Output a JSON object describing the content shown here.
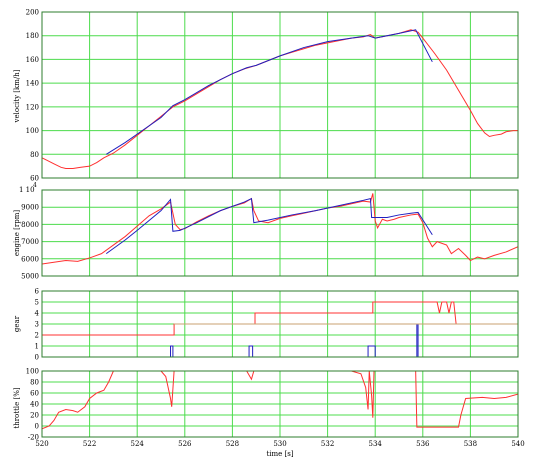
{
  "chart_data": [
    {
      "type": "line",
      "panel": "velocity",
      "ylabel": "velocity [km/h]",
      "xlim": [
        520,
        540
      ],
      "ylim": [
        60,
        200
      ],
      "yticks": [
        60,
        80,
        100,
        120,
        140,
        160,
        180,
        200
      ],
      "grid": true,
      "series": [
        {
          "color": "#ff3030",
          "points": [
            [
              520,
              77
            ],
            [
              520.2,
              75
            ],
            [
              520.5,
              72
            ],
            [
              520.8,
              69
            ],
            [
              521,
              68
            ],
            [
              521.3,
              68
            ],
            [
              521.6,
              69
            ],
            [
              522,
              70
            ],
            [
              522.3,
              73
            ],
            [
              522.6,
              77
            ],
            [
              523,
              81
            ],
            [
              523.5,
              88
            ],
            [
              524,
              96
            ],
            [
              524.5,
              104
            ],
            [
              525,
              112
            ],
            [
              525.5,
              120
            ],
            [
              526,
              125
            ],
            [
              526.5,
              131
            ],
            [
              527,
              137
            ],
            [
              527.5,
              143
            ],
            [
              528,
              148
            ],
            [
              528.5,
              152
            ],
            [
              529,
              155
            ],
            [
              529.5,
              159
            ],
            [
              530,
              163
            ],
            [
              530.5,
              166
            ],
            [
              531,
              169
            ],
            [
              531.5,
              172
            ],
            [
              532,
              174
            ],
            [
              532.5,
              176
            ],
            [
              533,
              178
            ],
            [
              533.5,
              179
            ],
            [
              533.8,
              181
            ],
            [
              534,
              178
            ],
            [
              534.5,
              180
            ],
            [
              535,
              182
            ],
            [
              535.5,
              185
            ],
            [
              535.8,
              183
            ],
            [
              536,
              178
            ],
            [
              536.5,
              165
            ],
            [
              537,
              151
            ],
            [
              537.5,
              134
            ],
            [
              538,
              117
            ],
            [
              538.3,
              106
            ],
            [
              538.6,
              98
            ],
            [
              538.8,
              95
            ],
            [
              539,
              96
            ],
            [
              539.3,
              97
            ],
            [
              539.5,
              99
            ],
            [
              539.8,
              100
            ],
            [
              540,
              100
            ]
          ]
        },
        {
          "color": "#2020c0",
          "points": [
            [
              522.7,
              80
            ],
            [
              523.5,
              90
            ],
            [
              524,
              97
            ],
            [
              525,
              111
            ],
            [
              525.5,
              121
            ],
            [
              526,
              126
            ],
            [
              527,
              138
            ],
            [
              528,
              148
            ],
            [
              528.6,
              153
            ],
            [
              529,
              155
            ],
            [
              530,
              163
            ],
            [
              531,
              170
            ],
            [
              532,
              175
            ],
            [
              533,
              178
            ],
            [
              533.7,
              180
            ],
            [
              534,
              178
            ],
            [
              535,
              182
            ],
            [
              535.7,
              185
            ],
            [
              536.4,
              158
            ]
          ]
        }
      ]
    },
    {
      "type": "line",
      "panel": "engine",
      "ylabel": "engine [rpm]",
      "multiplier": "1 10",
      "exponent": "4",
      "xlim": [
        520,
        540
      ],
      "ylim": [
        5000,
        10000
      ],
      "yticks": [
        5000,
        6000,
        7000,
        8000,
        9000,
        10000
      ],
      "grid": true,
      "series": [
        {
          "color": "#ff3030",
          "points": [
            [
              520,
              5700
            ],
            [
              520.5,
              5800
            ],
            [
              521,
              5900
            ],
            [
              521.5,
              5850
            ],
            [
              522,
              6050
            ],
            [
              522.5,
              6300
            ],
            [
              523,
              6800
            ],
            [
              523.5,
              7300
            ],
            [
              524,
              7900
            ],
            [
              524.5,
              8500
            ],
            [
              525,
              8900
            ],
            [
              525.4,
              9300
            ],
            [
              525.6,
              8000
            ],
            [
              525.8,
              7700
            ],
            [
              526,
              7750
            ],
            [
              526.5,
              8150
            ],
            [
              527,
              8500
            ],
            [
              527.5,
              8800
            ],
            [
              528,
              9050
            ],
            [
              528.5,
              9250
            ],
            [
              528.8,
              9500
            ],
            [
              528.9,
              8800
            ],
            [
              529.1,
              8200
            ],
            [
              529.5,
              8100
            ],
            [
              530,
              8350
            ],
            [
              530.5,
              8500
            ],
            [
              531,
              8650
            ],
            [
              531.5,
              8800
            ],
            [
              532,
              8950
            ],
            [
              532.5,
              9050
            ],
            [
              533,
              9200
            ],
            [
              533.5,
              9350
            ],
            [
              533.8,
              9300
            ],
            [
              533.9,
              9800
            ],
            [
              534,
              8200
            ],
            [
              534.1,
              7800
            ],
            [
              534.3,
              8300
            ],
            [
              534.5,
              8200
            ],
            [
              534.8,
              8300
            ],
            [
              535,
              8400
            ],
            [
              535.5,
              8550
            ],
            [
              535.8,
              8600
            ],
            [
              536,
              8100
            ],
            [
              536.2,
              7200
            ],
            [
              536.4,
              6700
            ],
            [
              536.6,
              7000
            ],
            [
              537,
              6800
            ],
            [
              537.2,
              6300
            ],
            [
              537.5,
              6600
            ],
            [
              537.8,
              6200
            ],
            [
              538,
              5900
            ],
            [
              538.3,
              6100
            ],
            [
              538.6,
              6000
            ],
            [
              539,
              6200
            ],
            [
              539.5,
              6400
            ],
            [
              540,
              6700
            ]
          ]
        },
        {
          "color": "#2020c0",
          "points": [
            [
              522.7,
              6300
            ],
            [
              523.5,
              7100
            ],
            [
              524,
              7650
            ],
            [
              525,
              8800
            ],
            [
              525.4,
              9450
            ],
            [
              525.5,
              7600
            ],
            [
              525.8,
              7650
            ],
            [
              526.5,
              8100
            ],
            [
              527.5,
              8800
            ],
            [
              528.5,
              9300
            ],
            [
              528.8,
              9500
            ],
            [
              528.9,
              8100
            ],
            [
              529.5,
              8250
            ],
            [
              530.5,
              8550
            ],
            [
              531.5,
              8800
            ],
            [
              532.5,
              9100
            ],
            [
              533.5,
              9400
            ],
            [
              533.8,
              9500
            ],
            [
              533.85,
              8400
            ],
            [
              534.5,
              8400
            ],
            [
              535,
              8550
            ],
            [
              535.5,
              8650
            ],
            [
              535.8,
              8700
            ],
            [
              536.4,
              7400
            ]
          ]
        }
      ]
    },
    {
      "type": "line",
      "panel": "gear",
      "ylabel": "gear",
      "xlim": [
        520,
        540
      ],
      "ylim": [
        0,
        6
      ],
      "yticks": [
        0,
        1,
        2,
        3,
        4,
        5,
        6
      ],
      "grid": true,
      "series": [
        {
          "color": "#ff3030",
          "points": [
            [
              520,
              2
            ],
            [
              525.55,
              2
            ],
            [
              525.55,
              3
            ],
            [
              528.95,
              3
            ],
            [
              528.95,
              4
            ],
            [
              533.9,
              4
            ],
            [
              533.9,
              5
            ],
            [
              536.6,
              5
            ],
            [
              536.7,
              4
            ],
            [
              536.8,
              5
            ],
            [
              537,
              5
            ],
            [
              537.1,
              4
            ],
            [
              537.2,
              5
            ],
            [
              537.3,
              5
            ],
            [
              537.4,
              3
            ],
            [
              540,
              3
            ]
          ]
        },
        {
          "color": "#2020c0",
          "points": [
            [
              520,
              0
            ],
            [
              525.4,
              0
            ],
            [
              525.4,
              1
            ],
            [
              525.5,
              1
            ],
            [
              525.5,
              0
            ],
            [
              528.7,
              0
            ],
            [
              528.7,
              1
            ],
            [
              528.85,
              1
            ],
            [
              528.85,
              0
            ],
            [
              533.7,
              0
            ],
            [
              533.7,
              1
            ],
            [
              534,
              1
            ],
            [
              534,
              0
            ],
            [
              535.75,
              0
            ],
            [
              535.75,
              3
            ],
            [
              535.8,
              3
            ],
            [
              535.8,
              0
            ],
            [
              540,
              0
            ]
          ]
        },
        {
          "color": "#c8a070",
          "points": [
            [
              525.55,
              3
            ],
            [
              540,
              3
            ]
          ]
        }
      ]
    },
    {
      "type": "line",
      "panel": "throttle",
      "ylabel": "throttle [%]",
      "xlabel": "time [s]",
      "xlim": [
        520,
        540
      ],
      "ylim": [
        -20,
        100
      ],
      "yticks": [
        -20,
        0,
        20,
        40,
        60,
        80,
        100
      ],
      "xticks": [
        520,
        522,
        524,
        526,
        528,
        530,
        532,
        534,
        536,
        538,
        540
      ],
      "grid": true,
      "series": [
        {
          "color": "#ff3030",
          "points": [
            [
              520,
              -5
            ],
            [
              520.3,
              0
            ],
            [
              520.5,
              10
            ],
            [
              520.7,
              25
            ],
            [
              521,
              30
            ],
            [
              521.3,
              28
            ],
            [
              521.5,
              25
            ],
            [
              521.8,
              35
            ],
            [
              522,
              50
            ],
            [
              522.3,
              60
            ],
            [
              522.6,
              65
            ],
            [
              522.8,
              80
            ],
            [
              523,
              100
            ],
            [
              525,
              100
            ],
            [
              525.2,
              90
            ],
            [
              525.4,
              50
            ],
            [
              525.45,
              35
            ],
            [
              525.55,
              100
            ],
            [
              528.6,
              100
            ],
            [
              528.8,
              85
            ],
            [
              528.9,
              100
            ],
            [
              533,
              100
            ],
            [
              533.4,
              95
            ],
            [
              533.6,
              70
            ],
            [
              533.7,
              30
            ],
            [
              533.75,
              100
            ],
            [
              533.85,
              55
            ],
            [
              533.9,
              15
            ],
            [
              533.95,
              100
            ],
            [
              535.7,
              100
            ],
            [
              535.75,
              -2
            ],
            [
              537.5,
              -2
            ],
            [
              537.6,
              20
            ],
            [
              537.8,
              50
            ],
            [
              538.5,
              52
            ],
            [
              539,
              50
            ],
            [
              539.5,
              52
            ],
            [
              540,
              58
            ]
          ]
        },
        {
          "color": "#c8a070",
          "points": [
            [
              523.2,
              100
            ],
            [
              525,
              100
            ],
            [
              525.55,
              100
            ],
            [
              528.6,
              100
            ],
            [
              528.9,
              100
            ],
            [
              533,
              100
            ],
            [
              534,
              100
            ],
            [
              535.7,
              100
            ]
          ]
        }
      ]
    }
  ]
}
